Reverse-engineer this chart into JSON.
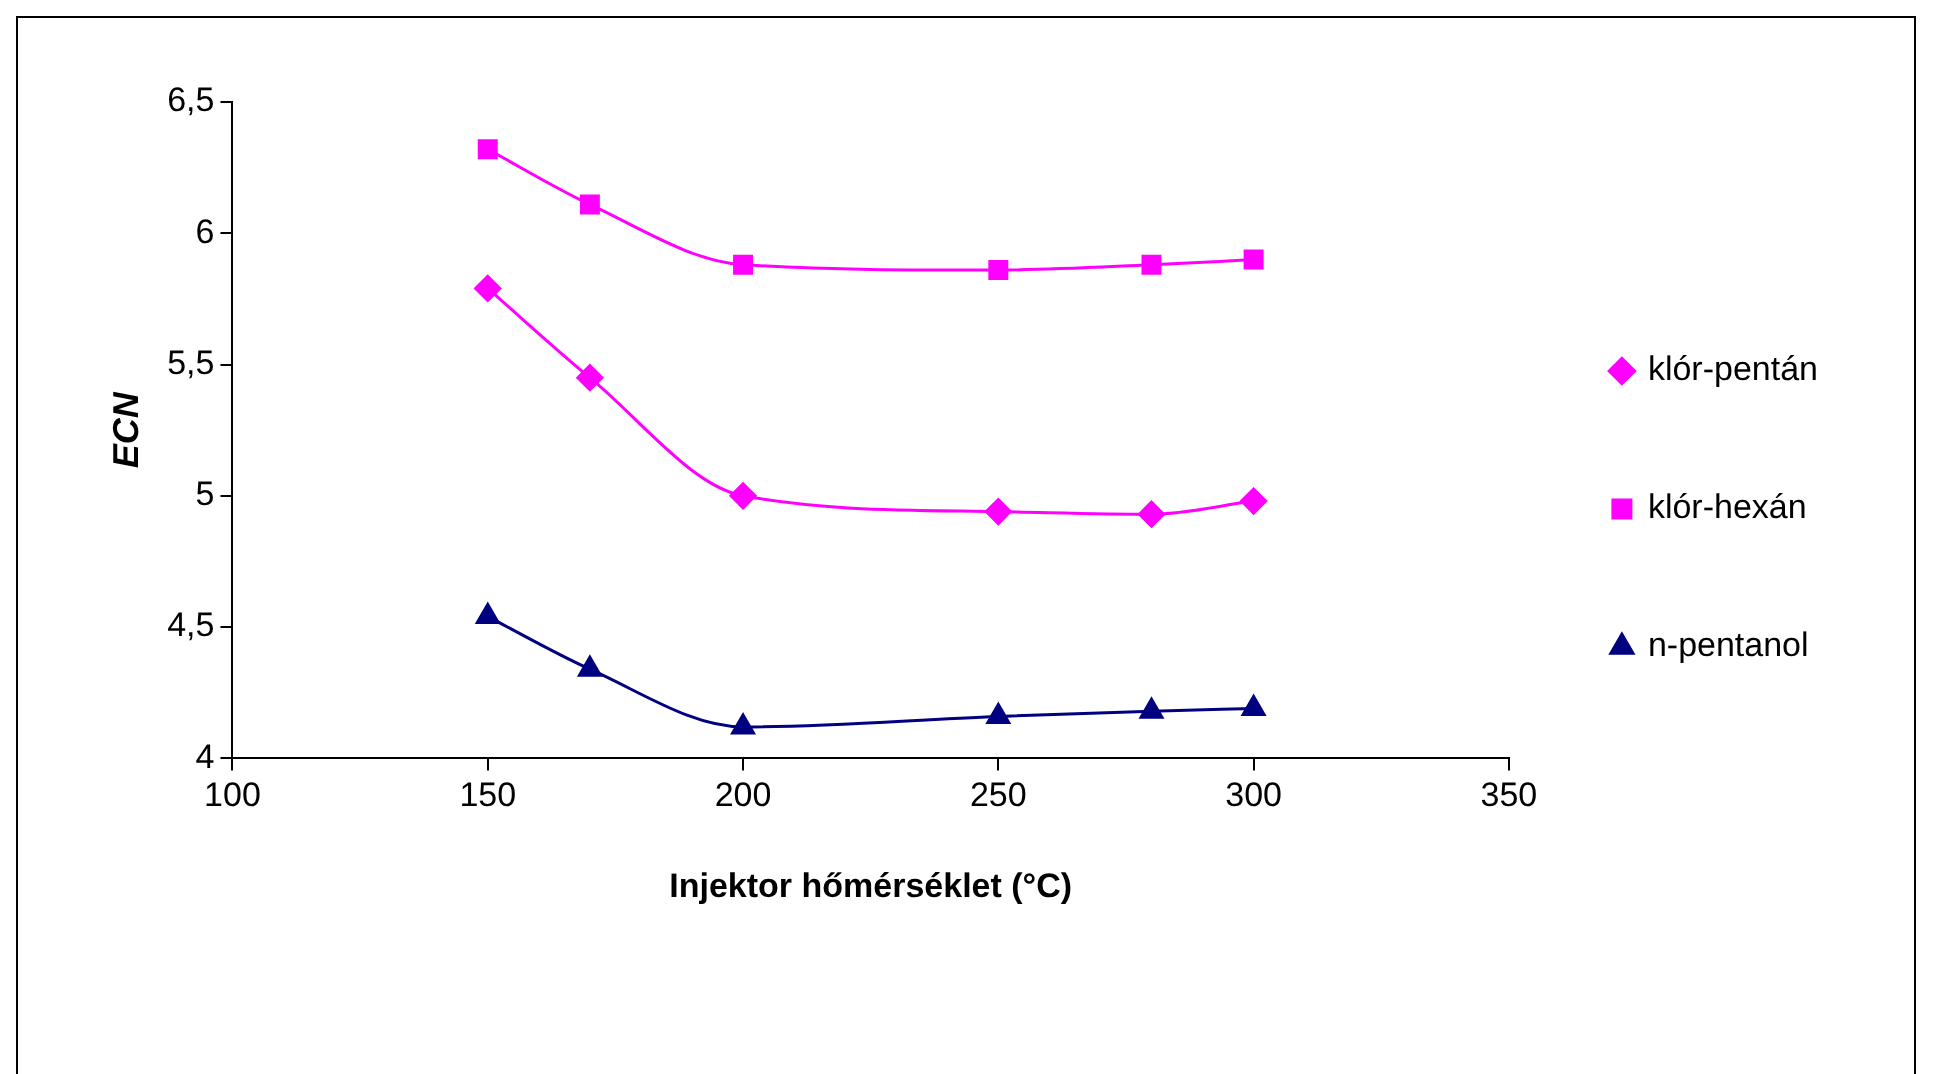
{
  "chart_data": {
    "type": "line",
    "xlabel": "Injektor hőmérséklet (°C)",
    "ylabel": "ECN",
    "x": [
      150,
      170,
      200,
      250,
      280,
      300
    ],
    "series": [
      {
        "name": "klór-pentán",
        "color": "#ff00ff",
        "marker": "diamond",
        "values": [
          5.79,
          5.45,
          5.0,
          4.94,
          4.93,
          4.98
        ]
      },
      {
        "name": "klór-hexán",
        "color": "#ff00ff",
        "marker": "square",
        "values": [
          6.32,
          6.11,
          5.88,
          5.86,
          5.88,
          5.9
        ]
      },
      {
        "name": "n-pentanol",
        "color": "#000080",
        "marker": "triangle",
        "values": [
          4.54,
          4.34,
          4.12,
          4.16,
          4.18,
          4.19
        ]
      }
    ],
    "xlim": [
      100,
      350
    ],
    "xticks": [
      100,
      150,
      200,
      250,
      300,
      350
    ],
    "ylim": [
      4,
      6.5
    ],
    "yticks": [
      4,
      {
        "value": 4.5,
        "label": "4,5"
      },
      5,
      {
        "value": 5.5,
        "label": "5,5"
      },
      6,
      {
        "value": 6.5,
        "label": "6,5"
      }
    ],
    "grid": false,
    "legend": "right"
  }
}
